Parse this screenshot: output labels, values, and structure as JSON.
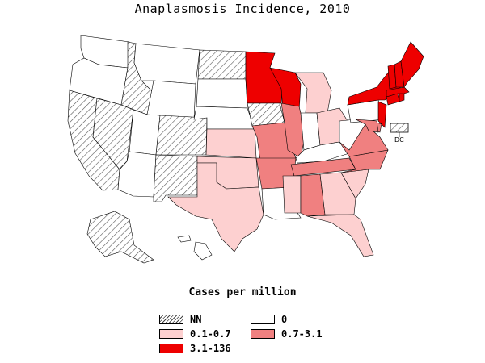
{
  "title": "Anaplasmosis Incidence, 2010",
  "legend": {
    "title": "Cases per million",
    "items": [
      {
        "label": "NN",
        "fill": "hatch",
        "color": "#ffffff"
      },
      {
        "label": "0",
        "fill": "solid",
        "color": "#ffffff"
      },
      {
        "label": "0.1-0.7",
        "fill": "solid",
        "color": "#fdd0d0"
      },
      {
        "label": "0.7-3.1",
        "fill": "solid",
        "color": "#f08080"
      },
      {
        "label": "3.1-136",
        "fill": "solid",
        "color": "#ee0000"
      }
    ]
  },
  "map_labels": {
    "dc": "DC"
  },
  "colors": {
    "nn": "hatch",
    "zero": "#ffffff",
    "low": "#fdd0d0",
    "mid": "#f08080",
    "high": "#ee0000",
    "border": "#000000"
  },
  "regions": {
    "WA": "zero",
    "OR": "zero",
    "CA": "nn",
    "ID": "nn",
    "NV": "nn",
    "UT": "zero",
    "AZ": "zero",
    "MT": "zero",
    "WY": "zero",
    "CO": "nn",
    "NM": "nn",
    "ND": "nn",
    "SD": "zero",
    "NE": "zero",
    "KS": "low",
    "OK": "low",
    "TX": "low",
    "MN": "high",
    "IA": "nn",
    "MO": "mid",
    "AR": "mid",
    "LA": "zero",
    "WI": "high",
    "IL": "mid",
    "MI": "low",
    "IN": "zero",
    "OH": "low",
    "KY": "zero",
    "TN": "mid",
    "MS": "low",
    "AL": "mid",
    "GA": "low",
    "FL": "low",
    "SC": "low",
    "NC": "mid",
    "VA": "mid",
    "WV": "zero",
    "PA": "zero",
    "NY": "high",
    "NJ": "high",
    "DE": "mid",
    "MD": "mid",
    "CT": "high",
    "RI": "high",
    "MA": "high",
    "VT": "high",
    "NH": "high",
    "ME": "high",
    "AK": "nn",
    "HI": "zero",
    "DC": "nn"
  }
}
